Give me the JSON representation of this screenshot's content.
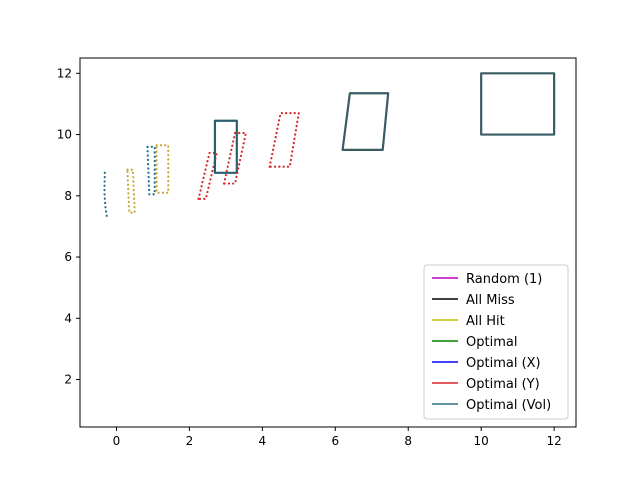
{
  "chart_data": {
    "type": "scatter",
    "title": "",
    "xlabel": "",
    "ylabel": "",
    "xlim": [
      -1,
      12.6
    ],
    "ylim": [
      0.45,
      12.5
    ],
    "xticks": [
      0,
      2,
      4,
      6,
      8,
      10,
      12
    ],
    "yticks": [
      2,
      4,
      6,
      8,
      10,
      12
    ],
    "grid": false,
    "legend_position": "lower-right",
    "legend": [
      {
        "name": "Random (1)",
        "color": "#bf00bf"
      },
      {
        "name": "All Miss",
        "color": "#000000"
      },
      {
        "name": "All Hit",
        "color": "#bfbf00"
      },
      {
        "name": "Optimal",
        "color": "#008000"
      },
      {
        "name": "Optimal (X)",
        "color": "#0000ff"
      },
      {
        "name": "Optimal (Y)",
        "color": "#d62728"
      },
      {
        "name": "Optimal (Vol)",
        "color": "#2a7280"
      }
    ],
    "series": [
      {
        "name": "Optimal (Vol)",
        "color": "#1f6f8b",
        "style": "dotted",
        "points": [
          [
            -0.32,
            8.75
          ],
          [
            -0.33,
            8.1
          ],
          [
            -0.3,
            7.6
          ],
          [
            -0.26,
            7.3
          ]
        ]
      },
      {
        "name": "All Hit",
        "color": "#c8a832",
        "style": "dotted",
        "points": [
          [
            0.3,
            8.85
          ],
          [
            0.45,
            8.85
          ],
          [
            0.5,
            7.45
          ],
          [
            0.35,
            7.45
          ],
          [
            0.3,
            8.85
          ]
        ]
      },
      {
        "name": "Optimal (Vol)",
        "color": "#1f6f8b",
        "style": "dotted",
        "points": [
          [
            0.85,
            9.6
          ],
          [
            1.05,
            9.6
          ],
          [
            1.05,
            8.05
          ],
          [
            0.9,
            8.05
          ],
          [
            0.85,
            9.6
          ]
        ]
      },
      {
        "name": "All Hit",
        "color": "#c8a832",
        "style": "dotted",
        "points": [
          [
            1.1,
            9.65
          ],
          [
            1.42,
            9.65
          ],
          [
            1.42,
            8.1
          ],
          [
            1.1,
            8.1
          ],
          [
            1.1,
            9.65
          ]
        ]
      },
      {
        "name": "Optimal (Y)",
        "color": "#d62728",
        "style": "dotted",
        "points": [
          [
            2.25,
            7.9
          ],
          [
            2.55,
            9.4
          ],
          [
            2.75,
            9.4
          ],
          [
            2.45,
            7.9
          ],
          [
            2.25,
            7.9
          ]
        ]
      },
      {
        "name": "Optimal (Vol)",
        "color": "#2a5f6e",
        "style": "solid",
        "points": [
          [
            2.7,
            10.45
          ],
          [
            3.3,
            10.45
          ],
          [
            3.3,
            8.75
          ],
          [
            2.7,
            8.75
          ],
          [
            2.7,
            10.45
          ]
        ]
      },
      {
        "name": "Optimal (Y)",
        "color": "#d62728",
        "style": "dotted",
        "points": [
          [
            2.95,
            8.4
          ],
          [
            3.25,
            10.05
          ],
          [
            3.55,
            10.05
          ],
          [
            3.25,
            8.4
          ],
          [
            2.95,
            8.4
          ]
        ]
      },
      {
        "name": "Optimal (Y)",
        "color": "#d62728",
        "style": "dotted",
        "points": [
          [
            4.2,
            8.95
          ],
          [
            4.5,
            10.7
          ],
          [
            5.0,
            10.7
          ],
          [
            4.75,
            8.95
          ],
          [
            4.2,
            8.95
          ]
        ]
      },
      {
        "name": "Optimal (Vol)",
        "color": "#3a5c64",
        "style": "solid",
        "points": [
          [
            6.2,
            9.5
          ],
          [
            6.4,
            11.35
          ],
          [
            7.45,
            11.35
          ],
          [
            7.3,
            9.5
          ],
          [
            6.2,
            9.5
          ]
        ]
      },
      {
        "name": "Optimal (Vol)",
        "color": "#3a5c64",
        "style": "solid",
        "points": [
          [
            10.0,
            12.0
          ],
          [
            12.0,
            12.0
          ],
          [
            12.0,
            10.0
          ],
          [
            10.0,
            10.0
          ],
          [
            10.0,
            12.0
          ]
        ]
      }
    ]
  }
}
